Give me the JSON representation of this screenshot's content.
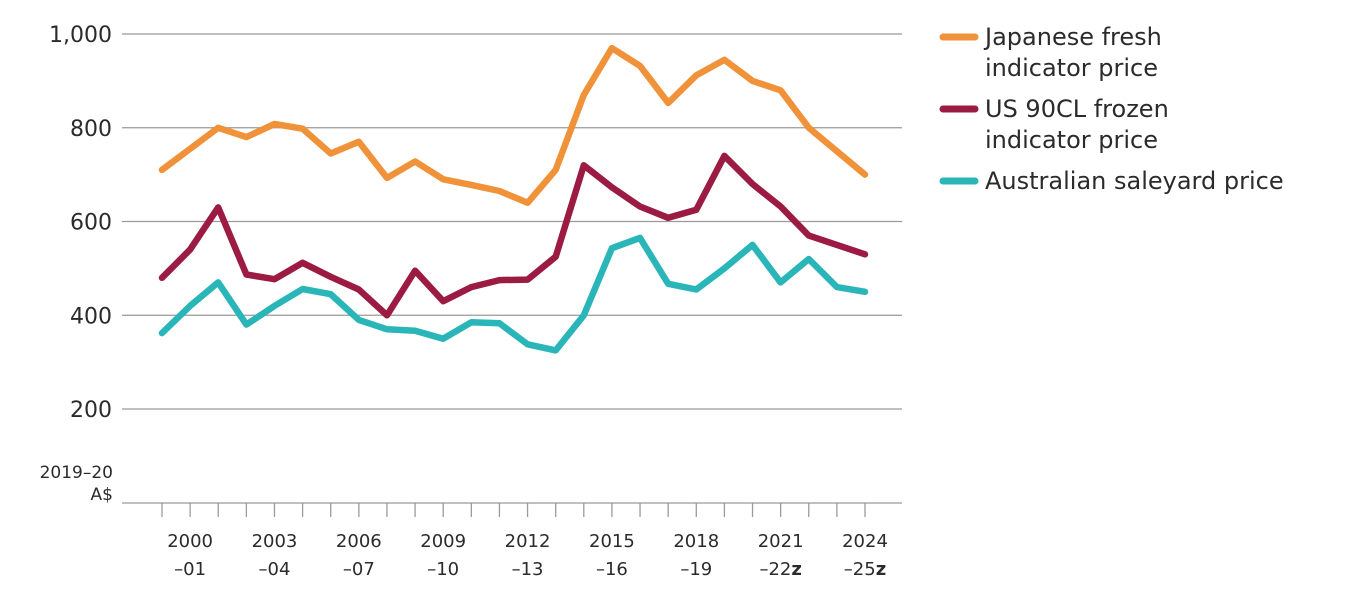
{
  "chart_data": {
    "type": "line",
    "unit_label": [
      "2019–20",
      "A$"
    ],
    "ylim": [
      0,
      1000
    ],
    "y_ticks": [
      {
        "value": 200,
        "label": "200"
      },
      {
        "value": 400,
        "label": "400"
      },
      {
        "value": 600,
        "label": "600"
      },
      {
        "value": 800,
        "label": "800"
      },
      {
        "value": 1000,
        "label": "1,000"
      }
    ],
    "x_ticks": [
      {
        "year": 2000,
        "line1": "2000",
        "line2": "–01",
        "suffix": ""
      },
      {
        "year": 2003,
        "line1": "2003",
        "line2": "–04",
        "suffix": ""
      },
      {
        "year": 2006,
        "line1": "2006",
        "line2": "–07",
        "suffix": ""
      },
      {
        "year": 2009,
        "line1": "2009",
        "line2": "–10",
        "suffix": ""
      },
      {
        "year": 2012,
        "line1": "2012",
        "line2": "–13",
        "suffix": ""
      },
      {
        "year": 2015,
        "line1": "2015",
        "line2": "–16",
        "suffix": ""
      },
      {
        "year": 2018,
        "line1": "2018",
        "line2": "–19",
        "suffix": ""
      },
      {
        "year": 2021,
        "line1": "2021",
        "line2": "–22",
        "suffix": "z"
      },
      {
        "year": 2024,
        "line1": "2024",
        "line2": "–25",
        "suffix": "z"
      }
    ],
    "x": [
      1999,
      2000,
      2001,
      2002,
      2003,
      2004,
      2005,
      2006,
      2007,
      2008,
      2009,
      2010,
      2011,
      2012,
      2013,
      2014,
      2015,
      2016,
      2017,
      2018,
      2019,
      2020,
      2021,
      2022,
      2023,
      2024
    ],
    "xlim": [
      1998,
      2025.5
    ],
    "grid": true,
    "legend_position": "right",
    "series": [
      {
        "name_lines": [
          "Japanese fresh",
          "indicator price"
        ],
        "color": "#F0923A",
        "values": [
          710,
          755,
          800,
          780,
          808,
          798,
          745,
          770,
          693,
          728,
          690,
          678,
          665,
          640,
          710,
          870,
          970,
          932,
          853,
          912,
          945,
          900,
          880,
          800,
          750,
          700
        ]
      },
      {
        "name_lines": [
          "US 90CL frozen",
          "indicator price"
        ],
        "color": "#9B1B43",
        "values": [
          480,
          540,
          630,
          487,
          477,
          512,
          482,
          455,
          400,
          495,
          430,
          460,
          475,
          476,
          525,
          720,
          673,
          632,
          608,
          625,
          740,
          680,
          632,
          570,
          550,
          530
        ]
      },
      {
        "name_lines": [
          "Australian saleyard price"
        ],
        "color": "#2AB5B8",
        "values": [
          362,
          420,
          470,
          380,
          420,
          456,
          445,
          390,
          370,
          367,
          350,
          385,
          383,
          338,
          325,
          400,
          543,
          565,
          467,
          455,
          500,
          550,
          470,
          520,
          460,
          450
        ]
      }
    ]
  }
}
